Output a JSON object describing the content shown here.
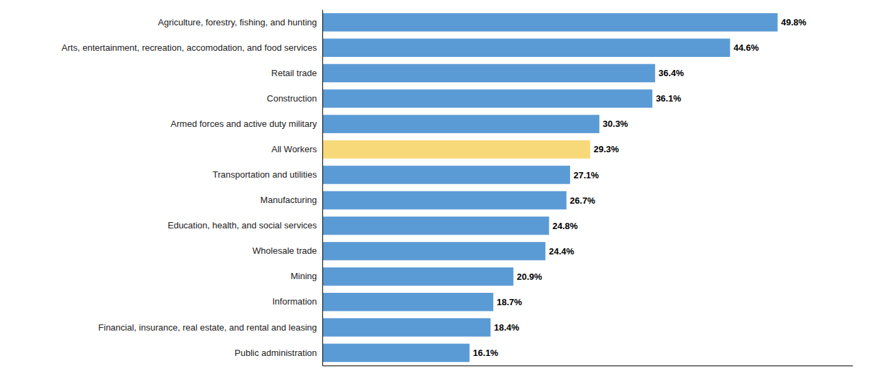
{
  "chart_data": {
    "type": "bar",
    "orientation": "horizontal",
    "categories": [
      "Public administration",
      "Financial, insurance, real estate, and rental and leasing",
      "Information",
      "Mining",
      "Wholesale trade",
      "Education, health, and social services",
      "Manufacturing",
      "Transportation and utilities",
      "All Workers",
      "Armed forces and active duty military",
      "Construction",
      "Retail trade",
      "Arts, entertainment, recreation, accomodation, and food services",
      "Agriculture, forestry, fishing, and hunting"
    ],
    "values": [
      16.1,
      18.4,
      18.7,
      20.9,
      24.4,
      24.8,
      26.7,
      27.1,
      29.3,
      30.3,
      36.1,
      36.4,
      44.6,
      49.8
    ],
    "value_labels": [
      "16.1%",
      "18.4%",
      "18.7%",
      "20.9%",
      "24.4%",
      "24.8%",
      "26.7%",
      "27.1%",
      "29.3%",
      "30.3%",
      "36.1%",
      "36.4%",
      "44.6%",
      "49.8%"
    ],
    "colors": [
      "#5b9bd5",
      "#5b9bd5",
      "#5b9bd5",
      "#5b9bd5",
      "#5b9bd5",
      "#5b9bd5",
      "#5b9bd5",
      "#5b9bd5",
      "#f7d97a",
      "#5b9bd5",
      "#5b9bd5",
      "#5b9bd5",
      "#5b9bd5",
      "#5b9bd5"
    ],
    "xlim": [
      0,
      58
    ],
    "data_labels": true,
    "tick_labels": "y",
    "grid": false
  }
}
